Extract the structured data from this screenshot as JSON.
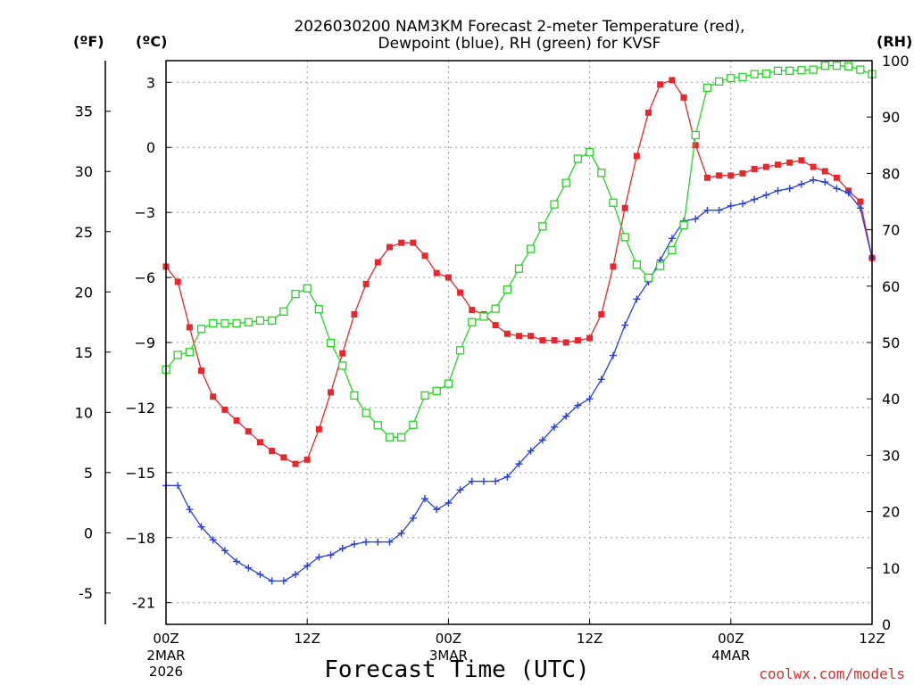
{
  "chart_data": {
    "type": "line",
    "title_line1": "2026030200 NAM3KM Forecast 2-meter Temperature (red),",
    "title_line2": "Dewpoint (blue), RH (green) for KVSF",
    "unit_f": "(ºF)",
    "unit_c": "(ºC)",
    "unit_rh": "(RH)",
    "xlabel": "Forecast Time (UTC)",
    "credit": "coolwx.com/models",
    "x_range_hours": [
      0,
      60
    ],
    "c_range": [
      -22,
      4
    ],
    "rh_range": [
      0,
      100
    ],
    "f_ticks": [
      "-5",
      "0",
      "5",
      "10",
      "15",
      "20",
      "25",
      "30",
      "35"
    ],
    "c_ticks": [
      "-21",
      "−18",
      "−15",
      "−12",
      "−9",
      "−6",
      "−3",
      "0",
      "3"
    ],
    "rh_ticks": [
      "0",
      "10",
      "20",
      "30",
      "40",
      "50",
      "60",
      "70",
      "80",
      "90",
      "100"
    ],
    "x_ticks": [
      {
        "hour": 0,
        "label": "00Z",
        "sub1": "2MAR",
        "sub2": "2026"
      },
      {
        "hour": 12,
        "label": "12Z",
        "sub1": "",
        "sub2": ""
      },
      {
        "hour": 24,
        "label": "00Z",
        "sub1": "3MAR",
        "sub2": ""
      },
      {
        "hour": 36,
        "label": "12Z",
        "sub1": "",
        "sub2": ""
      },
      {
        "hour": 48,
        "label": "00Z",
        "sub1": "4MAR",
        "sub2": ""
      },
      {
        "hour": 60,
        "label": "12Z",
        "sub1": "",
        "sub2": ""
      }
    ],
    "series": [
      {
        "name": "2-meter Temperature (°C)",
        "axis": "c",
        "color": "#e8262b",
        "marker": "filled-square",
        "hours": [
          0,
          1,
          2,
          3,
          4,
          5,
          6,
          7,
          8,
          9,
          10,
          11,
          12,
          13,
          14,
          15,
          16,
          17,
          18,
          19,
          20,
          21,
          22,
          23,
          24,
          25,
          26,
          27,
          28,
          29,
          30,
          31,
          32,
          33,
          34,
          35,
          36,
          37,
          38,
          39,
          40,
          41,
          42,
          43,
          44,
          45,
          46,
          47,
          48,
          49,
          50,
          51,
          52,
          53,
          54,
          55,
          56,
          57,
          58,
          59,
          60
        ],
        "values": [
          -5.5,
          -6.2,
          -8.3,
          -10.3,
          -11.5,
          -12.1,
          -12.6,
          -13.1,
          -13.6,
          -14.0,
          -14.3,
          -14.6,
          -14.4,
          -13.0,
          -11.3,
          -9.5,
          -7.7,
          -6.3,
          -5.3,
          -4.6,
          -4.4,
          -4.4,
          -5.0,
          -5.8,
          -6.0,
          -6.7,
          -7.5,
          -7.7,
          -8.2,
          -8.6,
          -8.7,
          -8.7,
          -8.9,
          -8.9,
          -9.0,
          -8.9,
          -8.8,
          -7.7,
          -5.5,
          -2.8,
          -0.4,
          1.6,
          2.9,
          3.1,
          2.3,
          0.1,
          -1.4,
          -1.3,
          -1.3,
          -1.2,
          -1.0,
          -0.9,
          -0.8,
          -0.7,
          -0.6,
          -0.9,
          -1.1,
          -1.4,
          -2.0,
          -2.5,
          -5.1
        ]
      },
      {
        "name": "Dewpoint (°C)",
        "axis": "c",
        "color": "#2a3fe0",
        "marker": "plus",
        "hours": [
          0,
          1,
          2,
          3,
          4,
          5,
          6,
          7,
          8,
          9,
          10,
          11,
          12,
          13,
          14,
          15,
          16,
          17,
          18,
          19,
          20,
          21,
          22,
          23,
          24,
          25,
          26,
          27,
          28,
          29,
          30,
          31,
          32,
          33,
          34,
          35,
          36,
          37,
          38,
          39,
          40,
          41,
          42,
          43,
          44,
          45,
          46,
          47,
          48,
          49,
          50,
          51,
          52,
          53,
          54,
          55,
          56,
          57,
          58,
          59,
          60
        ],
        "values": [
          -15.6,
          -15.6,
          -16.7,
          -17.5,
          -18.1,
          -18.6,
          -19.1,
          -19.4,
          -19.7,
          -20.0,
          -20.0,
          -19.7,
          -19.3,
          -18.9,
          -18.8,
          -18.5,
          -18.3,
          -18.2,
          -18.2,
          -18.2,
          -17.8,
          -17.1,
          -16.2,
          -16.7,
          -16.4,
          -15.8,
          -15.4,
          -15.4,
          -15.4,
          -15.2,
          -14.6,
          -14.0,
          -13.5,
          -12.9,
          -12.4,
          -11.9,
          -11.6,
          -10.7,
          -9.6,
          -8.2,
          -7.0,
          -6.2,
          -5.2,
          -4.2,
          -3.4,
          -3.3,
          -2.9,
          -2.9,
          -2.7,
          -2.6,
          -2.4,
          -2.2,
          -2.0,
          -1.9,
          -1.7,
          -1.5,
          -1.6,
          -1.9,
          -2.1,
          -2.8,
          -5.1
        ]
      },
      {
        "name": "RH (%)",
        "axis": "rh",
        "color": "#27d427",
        "marker": "open-square",
        "hours": [
          0,
          1,
          2,
          3,
          4,
          5,
          6,
          7,
          8,
          9,
          10,
          11,
          12,
          13,
          14,
          15,
          16,
          17,
          18,
          19,
          20,
          21,
          22,
          23,
          24,
          25,
          26,
          27,
          28,
          29,
          30,
          31,
          32,
          33,
          34,
          35,
          36,
          37,
          38,
          39,
          40,
          41,
          42,
          43,
          44,
          45,
          46,
          47,
          48,
          49,
          50,
          51,
          52,
          53,
          54,
          55,
          56,
          57,
          58,
          59,
          60
        ],
        "values": [
          45.2,
          47.8,
          48.3,
          52.4,
          53.4,
          53.4,
          53.4,
          53.6,
          53.9,
          53.9,
          55.5,
          58.6,
          59.6,
          55.9,
          49.9,
          45.9,
          40.6,
          37.5,
          35.3,
          33.2,
          33.2,
          35.4,
          40.6,
          41.4,
          42.7,
          48.6,
          53.6,
          54.6,
          56.0,
          59.4,
          63.1,
          66.6,
          70.6,
          74.5,
          78.3,
          82.6,
          83.8,
          80.1,
          74.8,
          68.7,
          63.8,
          61.5,
          63.6,
          66.4,
          70.8,
          86.8,
          95.2,
          96.3,
          96.9,
          97.1,
          97.6,
          97.7,
          98.2,
          98.2,
          98.3,
          98.4,
          99.1,
          99.1,
          99.0,
          98.4,
          97.6
        ]
      }
    ]
  }
}
